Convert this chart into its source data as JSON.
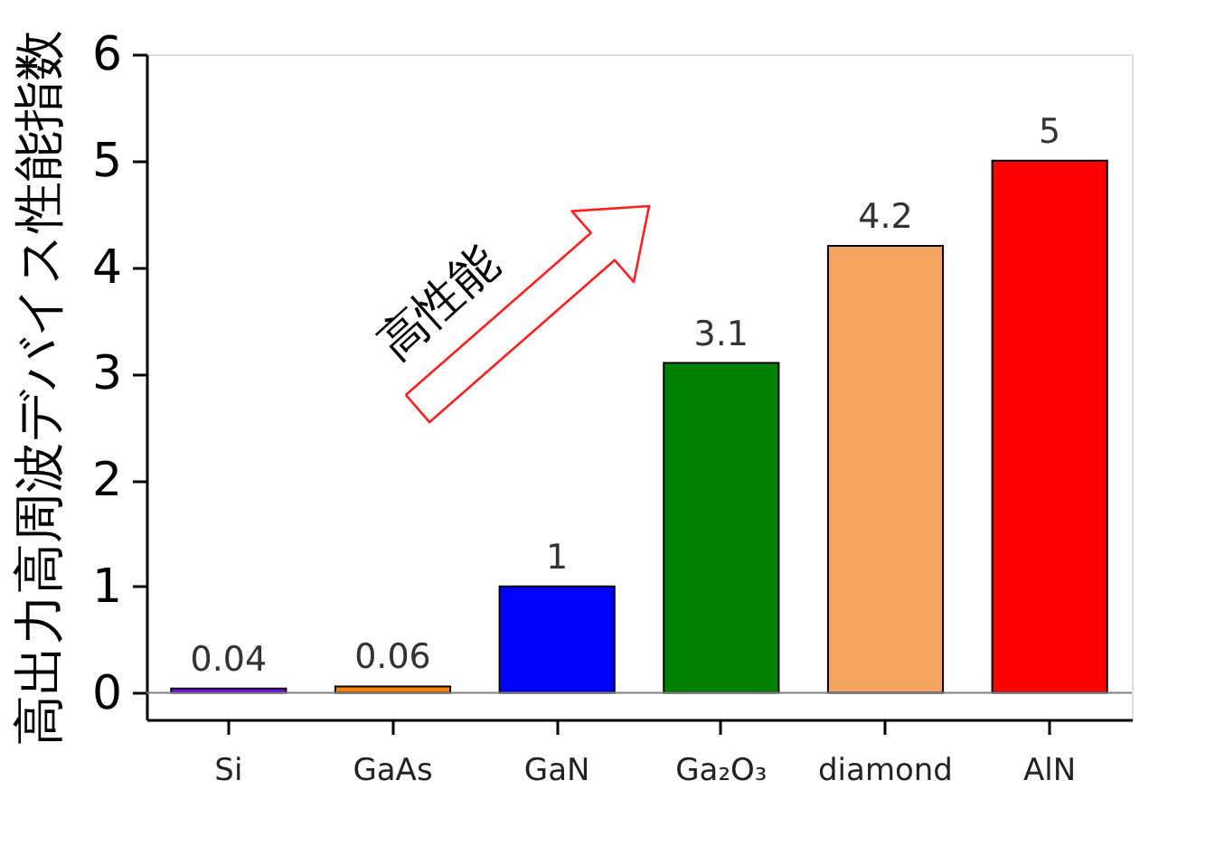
{
  "chart_data": {
    "type": "bar",
    "ylabel": "高出力高周波デバイス性能指数",
    "categories": [
      "Si",
      "GaAs",
      "GaN",
      "Ga₂O₃",
      "diamond",
      "AlN"
    ],
    "values": [
      0.04,
      0.06,
      1,
      3.1,
      4.2,
      5
    ],
    "colors": [
      "#7f00ff",
      "#ff8000",
      "#0000ff",
      "#008000",
      "#f4a460",
      "#ff0000"
    ],
    "data_labels": true,
    "ylim": [
      -0.25,
      6
    ],
    "yticks": [
      0,
      1,
      2,
      3,
      4,
      5,
      6
    ],
    "ref_lines": [
      {
        "axis": "y",
        "value": 0,
        "color": "#808080"
      }
    ],
    "annotations": [
      "高性能"
    ],
    "grid": false
  }
}
